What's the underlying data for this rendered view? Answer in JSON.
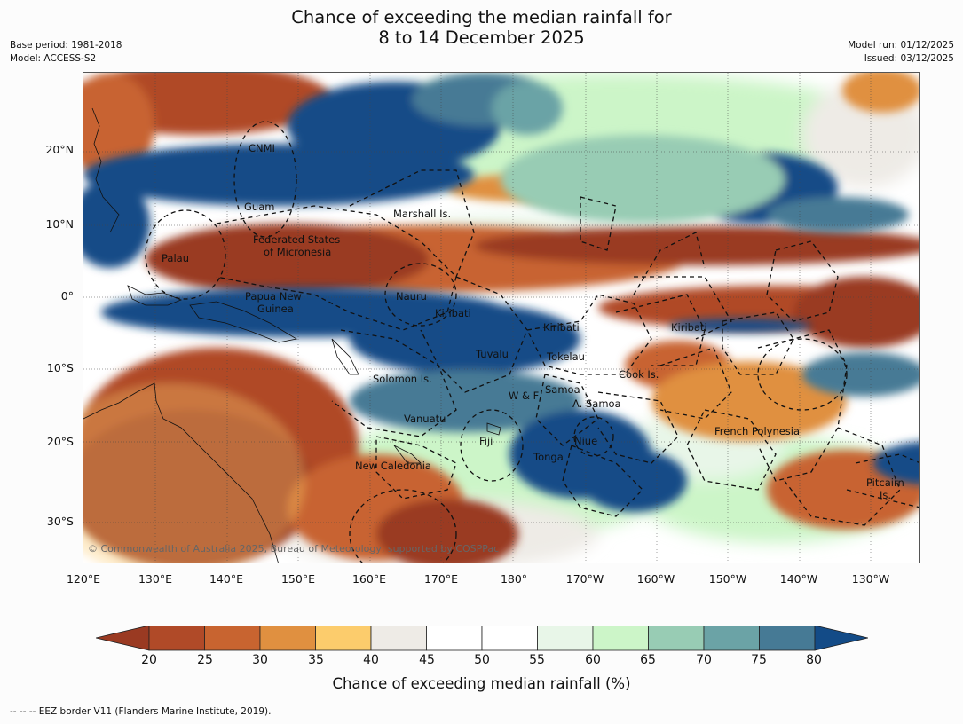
{
  "header": {
    "title_line1": "Chance of exceeding the median rainfall for",
    "title_line2": "8 to 14 December 2025",
    "base_period": "Base period: 1981-2018",
    "model": "Model: ACCESS-S2",
    "model_run": "Model run: 01/12/2025",
    "issued": "Issued: 03/12/2025"
  },
  "map": {
    "copyright": "© Commonwealth of Australia 2025, Bureau of Meteorology, supported by COSPPac",
    "lat_labels": [
      "20°N",
      "10°N",
      "0°",
      "10°S",
      "20°S",
      "30°S"
    ],
    "lon_labels": [
      "120°E",
      "130°E",
      "140°E",
      "150°E",
      "160°E",
      "170°E",
      "180°",
      "170°W",
      "160°W",
      "150°W",
      "140°W",
      "130°W"
    ],
    "regions": [
      "CNMI",
      "Guam",
      "Marshall Is.",
      "Federated States",
      "of Micronesia",
      "Palau",
      "Papua New",
      "Guinea",
      "Nauru",
      "Kiribati",
      "Kiribati",
      "Kiribati",
      "Tuvalu",
      "Tokelau",
      "Solomon Is.",
      "Cook Is.",
      "W & F",
      "Samoa",
      "A. Samoa",
      "Vanuatu",
      "Fiji",
      "Niue",
      "Tonga",
      "French Polynesia",
      "New Caledonia",
      "Pitcairn",
      "Is."
    ]
  },
  "colorbar": {
    "ticks": [
      "20",
      "25",
      "30",
      "35",
      "40",
      "45",
      "50",
      "55",
      "60",
      "65",
      "70",
      "75",
      "80"
    ],
    "colors": [
      "#9a3a22",
      "#b04a28",
      "#c86430",
      "#e09040",
      "#fccc6c",
      "#eeebe6",
      "#ffffff",
      "#ffffff",
      "#e8f6e8",
      "#ccf5c8",
      "#98ccb4",
      "#6ba3a6",
      "#467a95",
      "#134b87"
    ],
    "title": "Chance of exceeding median rainfall (%)"
  },
  "footnote": "--  --  -- EEZ border V11 (Flanders Marine Institute, 2019)."
}
